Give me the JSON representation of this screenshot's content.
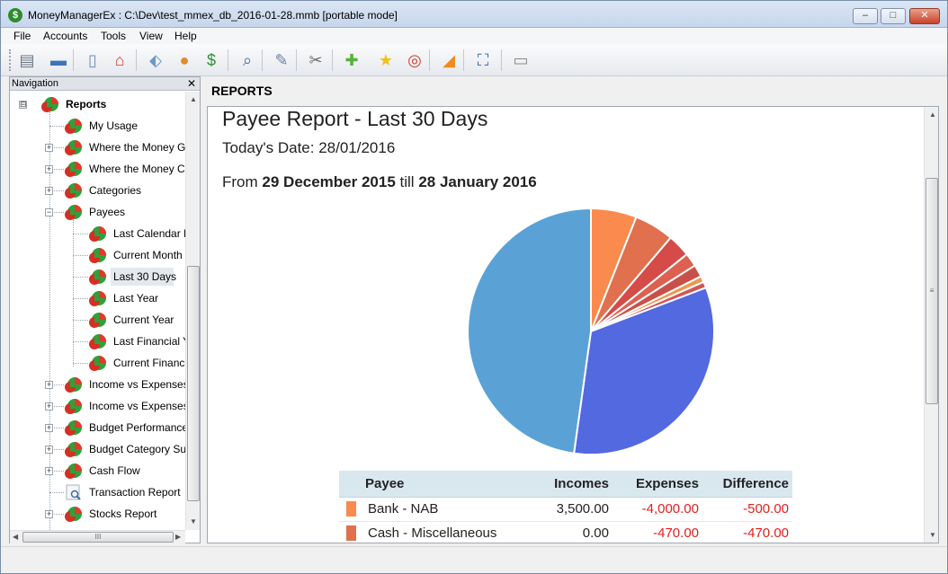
{
  "window": {
    "title": "MoneyManagerEx : C:\\Dev\\test_mmex_db_2016-01-28.mmb [portable mode]",
    "app_icon_glyph": "$",
    "minimize_glyph": "‒",
    "maximize_glyph": "□",
    "close_glyph": "✕"
  },
  "menu": {
    "items": [
      "File",
      "Accounts",
      "Tools",
      "View",
      "Help"
    ]
  },
  "toolbar": {
    "buttons": [
      {
        "name": "database-icon",
        "glyph": "▤",
        "color": "#6a7584"
      },
      {
        "name": "open-folder-icon",
        "glyph": "▬",
        "color": "#3f73b8"
      },
      {
        "name": "new-document-icon",
        "glyph": "▯",
        "color": "#6f8cb8"
      },
      {
        "name": "home-icon",
        "glyph": "⌂",
        "color": "#d13a2a"
      },
      {
        "name": "tag-icon",
        "glyph": "⬖",
        "color": "#6f96c8"
      },
      {
        "name": "user-icon",
        "glyph": "●",
        "color": "#e08a2a"
      },
      {
        "name": "dollar-icon",
        "glyph": "$",
        "color": "#2f8f35"
      },
      {
        "name": "search-icon",
        "glyph": "⌕",
        "color": "#4f6f9a"
      },
      {
        "name": "edit-icon",
        "glyph": "✎",
        "color": "#6a7fa2"
      },
      {
        "name": "tools-icon",
        "glyph": "✂",
        "color": "#6b6b6b"
      },
      {
        "name": "add-icon",
        "glyph": "✚",
        "color": "#55b23a"
      },
      {
        "name": "star-icon",
        "glyph": "★",
        "color": "#f0c020"
      },
      {
        "name": "help-lifebuoy-icon",
        "glyph": "◎",
        "color": "#d43a2a"
      },
      {
        "name": "rss-icon",
        "glyph": "◢",
        "color": "#f08a1c"
      },
      {
        "name": "fullscreen-icon",
        "glyph": "⛶",
        "color": "#2e6bb8"
      },
      {
        "name": "print-icon",
        "glyph": "▭",
        "color": "#8a8a8a"
      }
    ]
  },
  "navigation": {
    "header": "Navigation",
    "close_glyph": "✕",
    "items": [
      {
        "label": "Reports",
        "level": 0,
        "bold": true,
        "expander": "⊟"
      },
      {
        "label": "My Usage",
        "level": 1
      },
      {
        "label": "Where the Money G",
        "level": 1,
        "expander": "+"
      },
      {
        "label": "Where the Money C",
        "level": 1,
        "expander": "+"
      },
      {
        "label": "Categories",
        "level": 1,
        "expander": "+"
      },
      {
        "label": "Payees",
        "level": 1,
        "expander": "−"
      },
      {
        "label": "Last Calendar M",
        "level": 2
      },
      {
        "label": "Current Month",
        "level": 2
      },
      {
        "label": "Last 30 Days",
        "level": 2,
        "selected": true
      },
      {
        "label": "Last Year",
        "level": 2
      },
      {
        "label": "Current Year",
        "level": 2
      },
      {
        "label": "Last Financial Y",
        "level": 2
      },
      {
        "label": "Current Financ",
        "level": 2
      },
      {
        "label": "Income vs Expenses",
        "level": 1,
        "expander": "+"
      },
      {
        "label": "Income vs Expenses",
        "level": 1,
        "expander": "+"
      },
      {
        "label": "Budget Performance",
        "level": 1,
        "expander": "+"
      },
      {
        "label": "Budget Category Su",
        "level": 1,
        "expander": "+"
      },
      {
        "label": "Cash Flow",
        "level": 1,
        "expander": "+"
      },
      {
        "label": "Transaction Report",
        "level": 1,
        "icon": "magnifier"
      },
      {
        "label": "Stocks Report",
        "level": 1,
        "expander": "+"
      }
    ],
    "hscroll_grip": "III"
  },
  "content": {
    "header": "REPORTS",
    "report_title": "Payee Report - Last 30 Days",
    "todays_date": "Today's Date: 28/01/2016",
    "range_prefix": "From",
    "range_from": "29 December 2015",
    "range_mid": "till",
    "range_to": "28 January 2016",
    "scroll_grip": "≡"
  },
  "chart_data": {
    "type": "pie",
    "slices": [
      {
        "value": 6.0,
        "color": "#fb8a4e"
      },
      {
        "value": 5.2,
        "color": "#e0704e"
      },
      {
        "value": 3.0,
        "color": "#d44b47"
      },
      {
        "value": 1.8,
        "color": "#dc6150"
      },
      {
        "value": 1.6,
        "color": "#c9504a"
      },
      {
        "value": 0.8,
        "color": "#e89a52"
      },
      {
        "value": 0.8,
        "color": "#d25555"
      },
      {
        "value": 33.0,
        "color": "#5369e0"
      },
      {
        "value": 47.8,
        "color": "#5aa2d6"
      }
    ]
  },
  "table": {
    "columns": [
      "Payee",
      "Incomes",
      "Expenses",
      "Difference"
    ],
    "rows": [
      {
        "color": "#fb8a4e",
        "payee": "Bank - NAB",
        "incomes": "3,500.00",
        "expenses": "-4,000.00",
        "difference": "-500.00"
      },
      {
        "color": "#e0704e",
        "payee": "Cash - Miscellaneous",
        "incomes": "0.00",
        "expenses": "-470.00",
        "difference": "-470.00"
      }
    ]
  }
}
